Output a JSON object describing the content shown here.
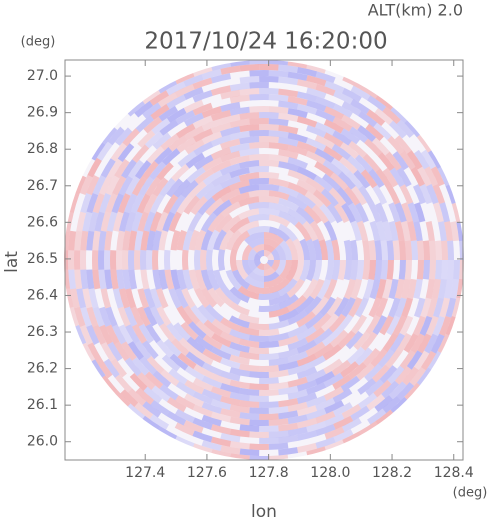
{
  "chart_data": {
    "type": "radar-ppi",
    "title": "2017/10/24 16:20:00",
    "annotation": "ALT(km) 2.0",
    "x_label": "lon",
    "y_label": "lat",
    "x_unit": "(deg)",
    "y_unit": "(deg)",
    "xlim": [
      127.14,
      128.43
    ],
    "ylim": [
      25.95,
      27.044
    ],
    "xticks": [
      127.4,
      127.6,
      127.8,
      {
        "value": 128.0,
        "label": "128.0"
      },
      128.2,
      128.4
    ],
    "yticks": [
      {
        "value": 26.0,
        "label": "26.0"
      },
      26.1,
      26.2,
      26.3,
      26.4,
      26.5,
      26.6,
      26.7,
      26.8,
      26.9,
      {
        "value": 27.0,
        "label": "27.0"
      }
    ]
  }
}
